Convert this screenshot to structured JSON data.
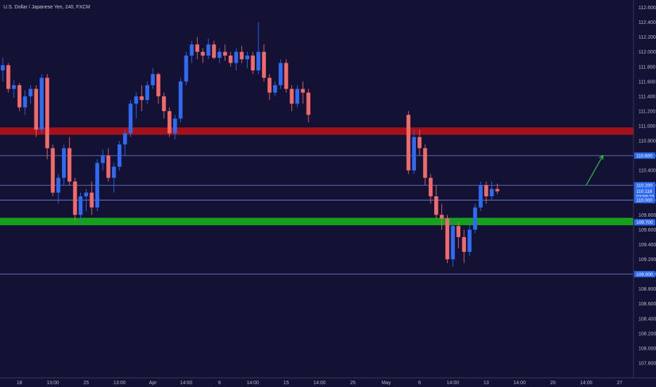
{
  "chart_data": {
    "type": "candlestick",
    "title": "U.S. Dollar / Japanese Yen, 240, FXCM",
    "colors": {
      "background": "#131235",
      "bull": "#2f6bf2",
      "bear": "#f06a6a",
      "resistance_zone": "#a3111a",
      "support_zone": "#17a01e",
      "level_line": "#7d89d9",
      "arrow": "#27c93a",
      "badge": "#2f6bf2"
    },
    "y_axis": {
      "min": 107.6,
      "max": 112.7,
      "ticks": [
        "112.600",
        "112.400",
        "112.200",
        "112.000",
        "111.800",
        "111.600",
        "111.400",
        "111.200",
        "111.000",
        "110.800",
        "110.600",
        "110.400",
        "110.200",
        "110.000",
        "109.800",
        "109.600",
        "109.400",
        "109.200",
        "109.000",
        "108.800",
        "108.600",
        "108.400",
        "108.200",
        "108.000",
        "107.800"
      ]
    },
    "x_axis": {
      "ticks": [
        {
          "label": "18",
          "index": 3
        },
        {
          "label": "13:00",
          "index": 9
        },
        {
          "label": "25",
          "index": 15
        },
        {
          "label": "13:00",
          "index": 21
        },
        {
          "label": "Apr",
          "index": 27
        },
        {
          "label": "14:00",
          "index": 33
        },
        {
          "label": "8",
          "index": 39
        },
        {
          "label": "14:00",
          "index": 45
        },
        {
          "label": "15",
          "index": 51
        },
        {
          "label": "14:00",
          "index": 57
        },
        {
          "label": "25",
          "index": 63
        },
        {
          "label": "May",
          "index": 69
        },
        {
          "label": "6",
          "index": 75
        },
        {
          "label": "14:00",
          "index": 81
        },
        {
          "label": "13",
          "index": 87
        },
        {
          "label": "14:00",
          "index": 93
        },
        {
          "label": "20",
          "index": 99
        },
        {
          "label": "14:00",
          "index": 105
        },
        {
          "label": "27",
          "index": 111
        }
      ],
      "slots": 114
    },
    "zones": [
      {
        "name": "resistance",
        "from": 110.88,
        "to": 110.98
      },
      {
        "name": "support",
        "from": 109.66,
        "to": 109.76
      }
    ],
    "levels": [
      110.6,
      110.2,
      110.0,
      109.0
    ],
    "price_badges": [
      {
        "value": 110.6,
        "label": "110.600"
      },
      {
        "value": 110.2,
        "label": "110.200"
      },
      {
        "value": 110.118,
        "label": "110.118"
      },
      {
        "value": 110.05,
        "label": "03:59:23"
      },
      {
        "value": 110.0,
        "label": "110.000"
      },
      {
        "value": 109.7,
        "label": "109.700"
      },
      {
        "value": 109.0,
        "label": "109.000"
      }
    ],
    "arrow": {
      "from": {
        "index": 105,
        "price": 110.2
      },
      "to": {
        "index": 108,
        "price": 110.6
      }
    },
    "series": [
      {
        "values": [
          [
            111.75,
            111.92,
            111.6,
            111.82
          ],
          [
            111.82,
            111.85,
            111.45,
            111.5
          ],
          [
            111.5,
            111.62,
            111.38,
            111.55
          ],
          [
            111.55,
            111.58,
            111.2,
            111.25
          ],
          [
            111.25,
            111.48,
            111.15,
            111.4
          ],
          [
            111.4,
            111.55,
            111.3,
            111.5
          ],
          [
            111.5,
            111.55,
            110.85,
            110.95
          ],
          [
            110.95,
            111.7,
            110.9,
            111.65
          ],
          [
            111.65,
            111.7,
            110.55,
            110.7
          ],
          [
            110.7,
            110.75,
            110.05,
            110.1
          ],
          [
            110.1,
            110.35,
            109.95,
            110.3
          ],
          [
            110.3,
            110.75,
            110.2,
            110.7
          ],
          [
            110.7,
            110.85,
            110.2,
            110.25
          ],
          [
            110.25,
            110.3,
            109.72,
            109.8
          ],
          [
            109.8,
            110.1,
            109.7,
            110.05
          ],
          [
            110.05,
            110.15,
            109.85,
            110.1
          ],
          [
            110.1,
            110.25,
            109.8,
            109.9
          ],
          [
            109.9,
            110.55,
            109.85,
            110.5
          ],
          [
            110.5,
            110.68,
            110.4,
            110.6
          ],
          [
            110.6,
            110.7,
            110.25,
            110.3
          ],
          [
            110.3,
            110.5,
            110.1,
            110.45
          ],
          [
            110.45,
            110.8,
            110.4,
            110.75
          ],
          [
            110.75,
            110.95,
            110.6,
            110.9
          ],
          [
            110.9,
            111.35,
            110.85,
            111.3
          ],
          [
            111.3,
            111.45,
            111.1,
            111.4
          ],
          [
            111.4,
            111.55,
            111.2,
            111.35
          ],
          [
            111.35,
            111.6,
            111.3,
            111.55
          ],
          [
            111.55,
            111.78,
            111.5,
            111.7
          ],
          [
            111.7,
            111.72,
            111.3,
            111.4
          ],
          [
            111.4,
            111.45,
            111.1,
            111.2
          ],
          [
            111.2,
            111.25,
            110.85,
            110.9
          ],
          [
            110.9,
            111.15,
            110.82,
            111.1
          ],
          [
            111.1,
            111.65,
            111.05,
            111.6
          ],
          [
            111.6,
            112.0,
            111.55,
            111.95
          ],
          [
            111.95,
            112.15,
            111.85,
            112.1
          ],
          [
            112.1,
            112.2,
            111.9,
            112.0
          ],
          [
            112.0,
            112.05,
            111.85,
            111.95
          ],
          [
            111.95,
            112.18,
            111.9,
            112.1
          ],
          [
            112.1,
            112.15,
            111.9,
            111.92
          ],
          [
            111.92,
            112.05,
            111.85,
            112.0
          ],
          [
            112.0,
            112.1,
            111.88,
            111.95
          ],
          [
            111.95,
            112.0,
            111.8,
            111.85
          ],
          [
            111.85,
            112.05,
            111.75,
            112.0
          ],
          [
            112.0,
            112.08,
            111.85,
            111.9
          ],
          [
            111.9,
            112.0,
            111.78,
            111.95
          ],
          [
            111.95,
            112.0,
            111.7,
            111.75
          ],
          [
            111.75,
            112.4,
            111.7,
            112.0
          ],
          [
            112.0,
            112.1,
            111.6,
            111.65
          ],
          [
            111.65,
            111.7,
            111.35,
            111.45
          ],
          [
            111.45,
            111.6,
            111.4,
            111.55
          ],
          [
            111.55,
            111.9,
            111.5,
            111.85
          ],
          [
            111.85,
            111.9,
            111.45,
            111.5
          ],
          [
            111.5,
            111.55,
            111.2,
            111.3
          ],
          [
            111.3,
            111.55,
            111.25,
            111.5
          ],
          [
            111.5,
            111.6,
            111.3,
            111.45
          ],
          [
            111.45,
            111.5,
            111.05,
            111.15
          ],
          [
            111.15,
            111.2,
            110.35,
            110.4
          ],
          [
            110.4,
            110.95,
            110.35,
            110.85
          ],
          [
            110.85,
            110.95,
            110.6,
            110.7
          ],
          [
            110.7,
            110.75,
            110.2,
            110.3
          ],
          [
            110.3,
            110.35,
            109.95,
            110.05
          ],
          [
            110.05,
            110.2,
            109.75,
            109.8
          ],
          [
            109.8,
            109.95,
            109.6,
            109.75
          ],
          [
            109.75,
            109.8,
            109.15,
            109.2
          ],
          [
            109.2,
            109.75,
            109.1,
            109.65
          ],
          [
            109.65,
            109.7,
            109.35,
            109.5
          ],
          [
            109.5,
            109.6,
            109.15,
            109.3
          ],
          [
            109.3,
            109.7,
            109.25,
            109.6
          ],
          [
            109.6,
            109.95,
            109.55,
            109.9
          ],
          [
            109.9,
            110.25,
            109.85,
            110.2
          ],
          [
            110.2,
            110.25,
            109.95,
            110.05
          ],
          [
            110.05,
            110.25,
            110.0,
            110.15
          ],
          [
            110.15,
            110.22,
            110.08,
            110.118
          ]
        ]
      }
    ],
    "series_index_map": [
      0,
      1,
      2,
      3,
      4,
      5,
      6,
      7,
      8,
      9,
      10,
      11,
      12,
      13,
      14,
      15,
      16,
      17,
      18,
      19,
      20,
      21,
      22,
      23,
      24,
      25,
      26,
      27,
      28,
      29,
      30,
      31,
      32,
      33,
      34,
      35,
      36,
      37,
      38,
      39,
      40,
      41,
      42,
      43,
      44,
      45,
      46,
      47,
      48,
      49,
      50,
      51,
      52,
      53,
      54,
      55,
      73,
      74,
      75,
      76,
      77,
      78,
      79,
      80,
      81,
      82,
      83,
      84,
      85,
      86,
      87,
      88,
      89
    ]
  }
}
